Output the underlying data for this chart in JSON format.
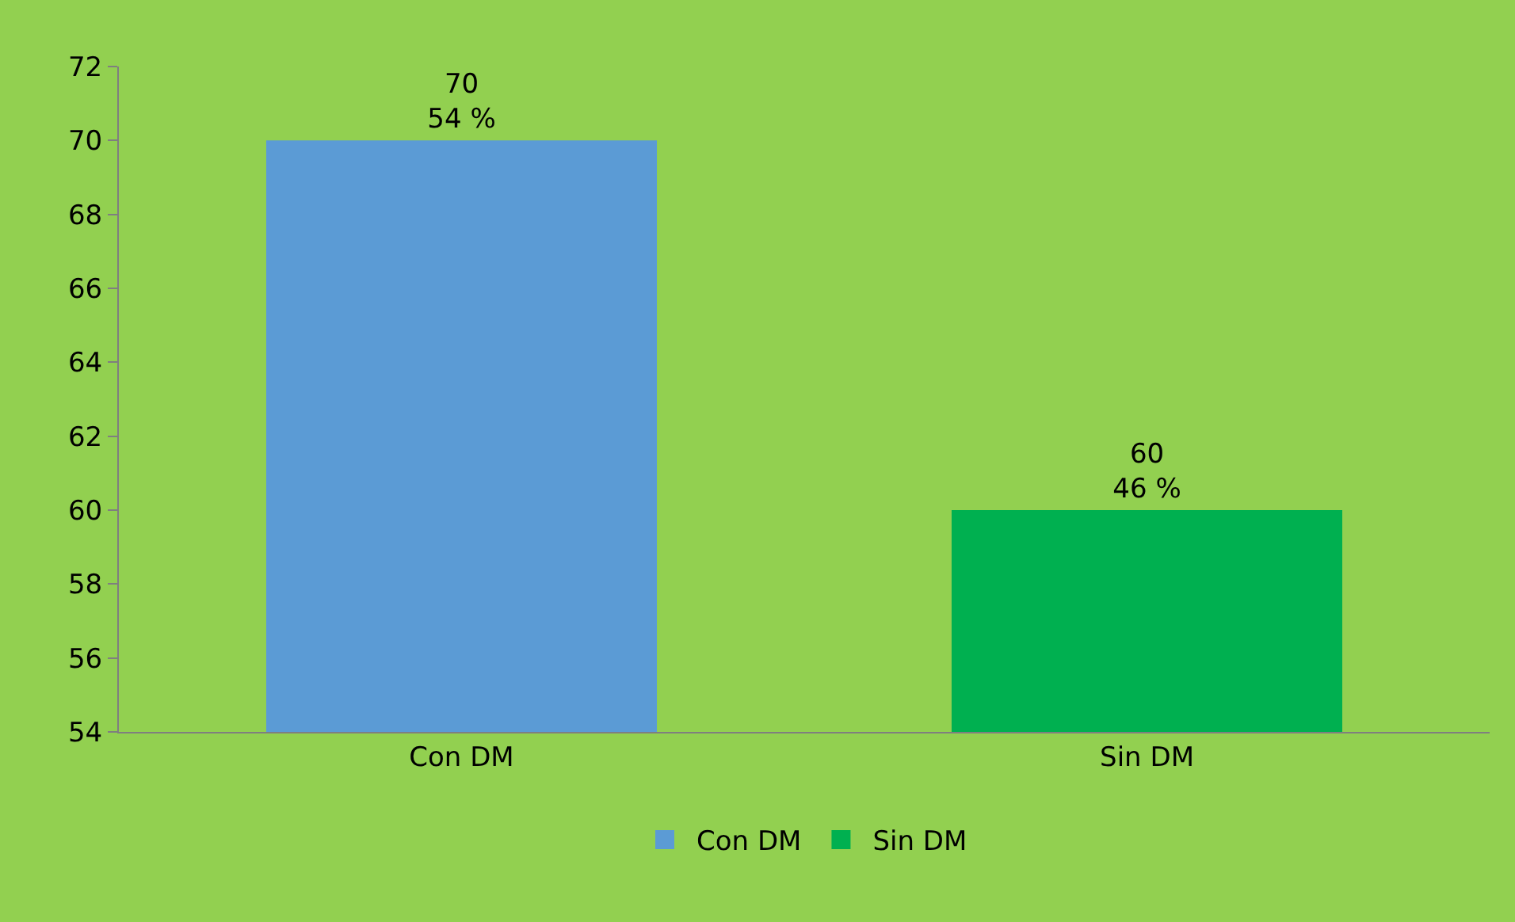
{
  "chart_data": {
    "type": "bar",
    "categories": [
      "Con DM",
      "Sin DM"
    ],
    "series": [
      {
        "name": "Con DM",
        "color": "#5b9bd5",
        "values": [
          70,
          null
        ],
        "value_labels": [
          "70\n54 %",
          null
        ]
      },
      {
        "name": "Sin DM",
        "color": "#00b050",
        "values": [
          null,
          60
        ],
        "value_labels": [
          null,
          "60\n46 %"
        ]
      }
    ],
    "ylim": [
      54,
      72
    ],
    "yticks": [
      54,
      56,
      58,
      60,
      62,
      64,
      66,
      68,
      70,
      72
    ],
    "grid": false,
    "legend": "bottom"
  }
}
